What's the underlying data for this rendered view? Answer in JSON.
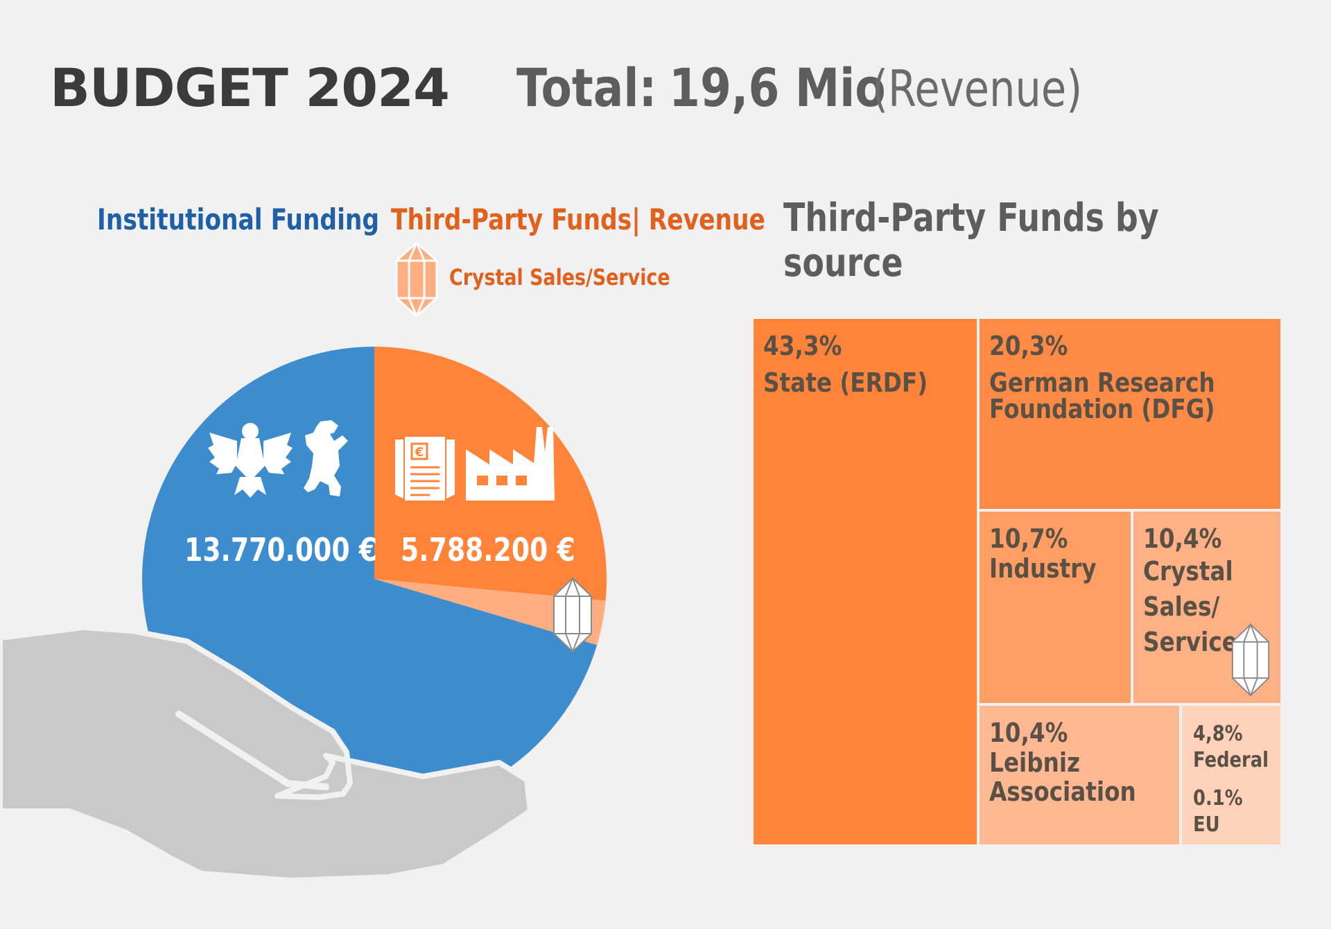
{
  "header": {
    "title": "BUDGET 2024",
    "total_label": "Total:",
    "total_value": "19,6 Mio",
    "total_note": "(Revenue)"
  },
  "legend": {
    "institutional": "Institutional Funding",
    "third_party": "Third-Party Funds| Revenue",
    "crystal": "Crystal Sales/Service"
  },
  "colors": {
    "institutional": "#3d8ccd",
    "third_party": "#ff8439",
    "crystal": "#ffae82",
    "hand": "#c9c9c9",
    "background": "#f1f1f1"
  },
  "icons": [
    "eagle-icon",
    "bear-icon",
    "invoice-icon",
    "factory-icon",
    "crystal-icon"
  ],
  "chart_data": [
    {
      "type": "pie",
      "title": "",
      "series": [
        {
          "name": "Institutional Funding",
          "value": 13770000,
          "label": "13.770.000 €"
        },
        {
          "name": "Third-Party Funds| Revenue",
          "value": 5788200,
          "label": "5.788.200 €"
        }
      ],
      "sub_slice": {
        "name": "Crystal Sales/Service",
        "fraction_of_total": 0.031
      }
    },
    {
      "type": "treemap",
      "title": "Third-Party Funds by source",
      "items": [
        {
          "name": "State (ERDF)",
          "pct_label": "43,3%",
          "value": 43.3
        },
        {
          "name": "German Research Foundation (DFG)",
          "pct_label": "20,3%",
          "value": 20.3
        },
        {
          "name": "Industry",
          "pct_label": "10,7%",
          "value": 10.7
        },
        {
          "name": "Crystal Sales/ Service",
          "pct_label": "10,4%",
          "value": 10.4
        },
        {
          "name": "Leibniz Association",
          "pct_label": "10,4%",
          "value": 10.4
        },
        {
          "name": "Federal",
          "pct_label": "4,8%",
          "value": 4.8
        },
        {
          "name": "EU",
          "pct_label": "0.1%",
          "value": 0.1
        }
      ]
    }
  ]
}
